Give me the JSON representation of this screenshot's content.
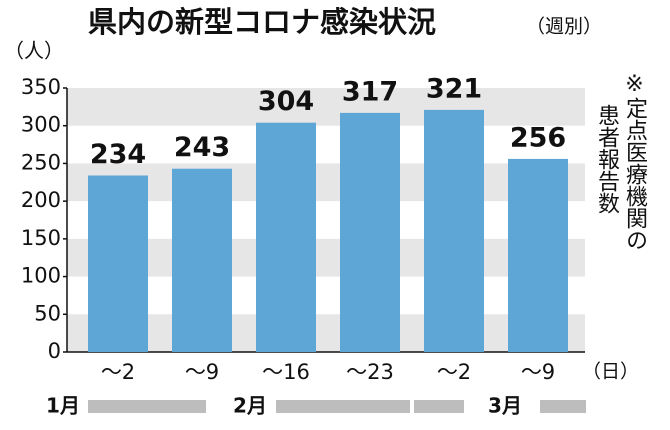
{
  "chart_data": {
    "type": "bar",
    "title": "県内の新型コロナ感染状況",
    "subtitle": "（週別）",
    "y_unit": "（人）",
    "x_unit": "（日）",
    "categories": [
      "～2",
      "～9",
      "～16",
      "～23",
      "～2",
      "～9"
    ],
    "values": [
      234,
      243,
      304,
      317,
      321,
      256
    ],
    "color": "#5ea6d6",
    "ylim": [
      0,
      350
    ],
    "yticks": [
      0,
      50,
      100,
      150,
      200,
      250,
      300,
      350
    ],
    "grid": "alternating bands",
    "months": [
      "1月",
      "2月",
      "3月"
    ],
    "note": [
      "※定点医療機関の",
      "患者報告数"
    ]
  }
}
